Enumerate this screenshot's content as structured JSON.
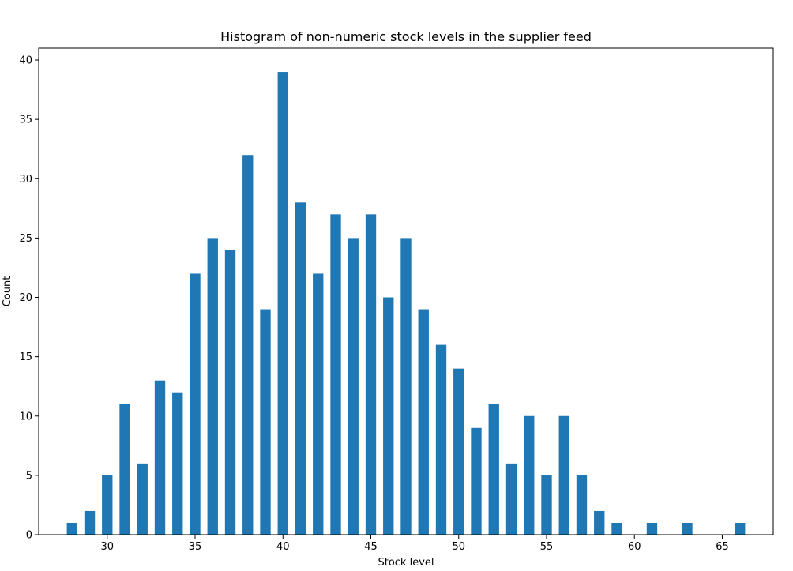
{
  "chart_data": {
    "type": "bar",
    "title": "Histogram of non-numeric stock levels in the supplier feed",
    "xlabel": "Stock level",
    "ylabel": "Count",
    "xlim": [
      26.1,
      67.9
    ],
    "ylim": [
      0,
      41
    ],
    "xticks": [
      30,
      35,
      40,
      45,
      50,
      55,
      60,
      65
    ],
    "yticks": [
      0,
      5,
      10,
      15,
      20,
      25,
      30,
      35,
      40
    ],
    "grid": false,
    "legend": "none",
    "bar_width": 0.6,
    "color": "#1f77b4",
    "x": [
      28,
      29,
      30,
      31,
      32,
      33,
      34,
      35,
      36,
      37,
      38,
      39,
      40,
      41,
      42,
      43,
      44,
      45,
      46,
      47,
      48,
      49,
      50,
      51,
      52,
      53,
      54,
      55,
      56,
      57,
      58,
      59,
      61,
      63,
      66
    ],
    "values": [
      1,
      2,
      5,
      11,
      6,
      13,
      12,
      22,
      25,
      24,
      32,
      19,
      39,
      28,
      22,
      27,
      25,
      27,
      20,
      25,
      19,
      16,
      14,
      9,
      11,
      6,
      10,
      5,
      10,
      5,
      2,
      1,
      1,
      1,
      1
    ]
  }
}
